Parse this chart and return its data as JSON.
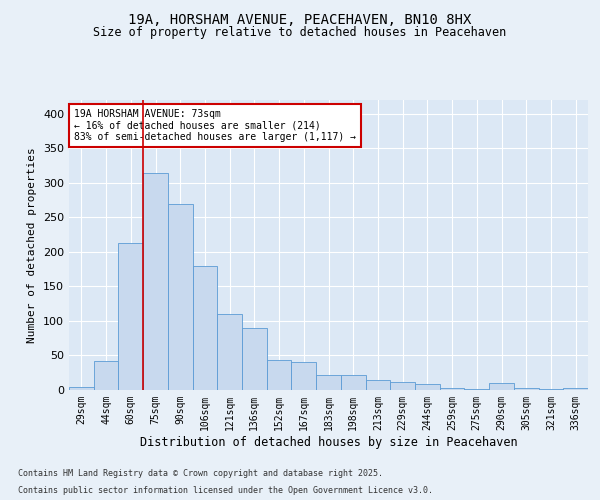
{
  "title_line1": "19A, HORSHAM AVENUE, PEACEHAVEN, BN10 8HX",
  "title_line2": "Size of property relative to detached houses in Peacehaven",
  "xlabel": "Distribution of detached houses by size in Peacehaven",
  "ylabel": "Number of detached properties",
  "bin_labels": [
    "29sqm",
    "44sqm",
    "60sqm",
    "75sqm",
    "90sqm",
    "106sqm",
    "121sqm",
    "136sqm",
    "152sqm",
    "167sqm",
    "183sqm",
    "198sqm",
    "213sqm",
    "229sqm",
    "244sqm",
    "259sqm",
    "275sqm",
    "290sqm",
    "305sqm",
    "321sqm",
    "336sqm"
  ],
  "bar_values": [
    5,
    42,
    213,
    314,
    270,
    180,
    110,
    90,
    43,
    41,
    22,
    22,
    15,
    12,
    8,
    3,
    2,
    10,
    3,
    2,
    3
  ],
  "bar_color": "#c8d9ee",
  "bar_edge_color": "#5b9bd5",
  "vline_x_index": 3,
  "vline_color": "#cc0000",
  "annotation_title": "19A HORSHAM AVENUE: 73sqm",
  "annotation_line2": "← 16% of detached houses are smaller (214)",
  "annotation_line3": "83% of semi-detached houses are larger (1,117) →",
  "annotation_box_color": "#cc0000",
  "ylim": [
    0,
    420
  ],
  "yticks": [
    0,
    50,
    100,
    150,
    200,
    250,
    300,
    350,
    400
  ],
  "footnote_line1": "Contains HM Land Registry data © Crown copyright and database right 2025.",
  "footnote_line2": "Contains public sector information licensed under the Open Government Licence v3.0.",
  "bg_color": "#e8f0f8",
  "plot_bg_color": "#dce8f5",
  "title_fontsize": 10,
  "subtitle_fontsize": 8.5,
  "ylabel_fontsize": 8,
  "xlabel_fontsize": 8.5,
  "tick_fontsize": 7,
  "annot_fontsize": 7,
  "footnote_fontsize": 6
}
